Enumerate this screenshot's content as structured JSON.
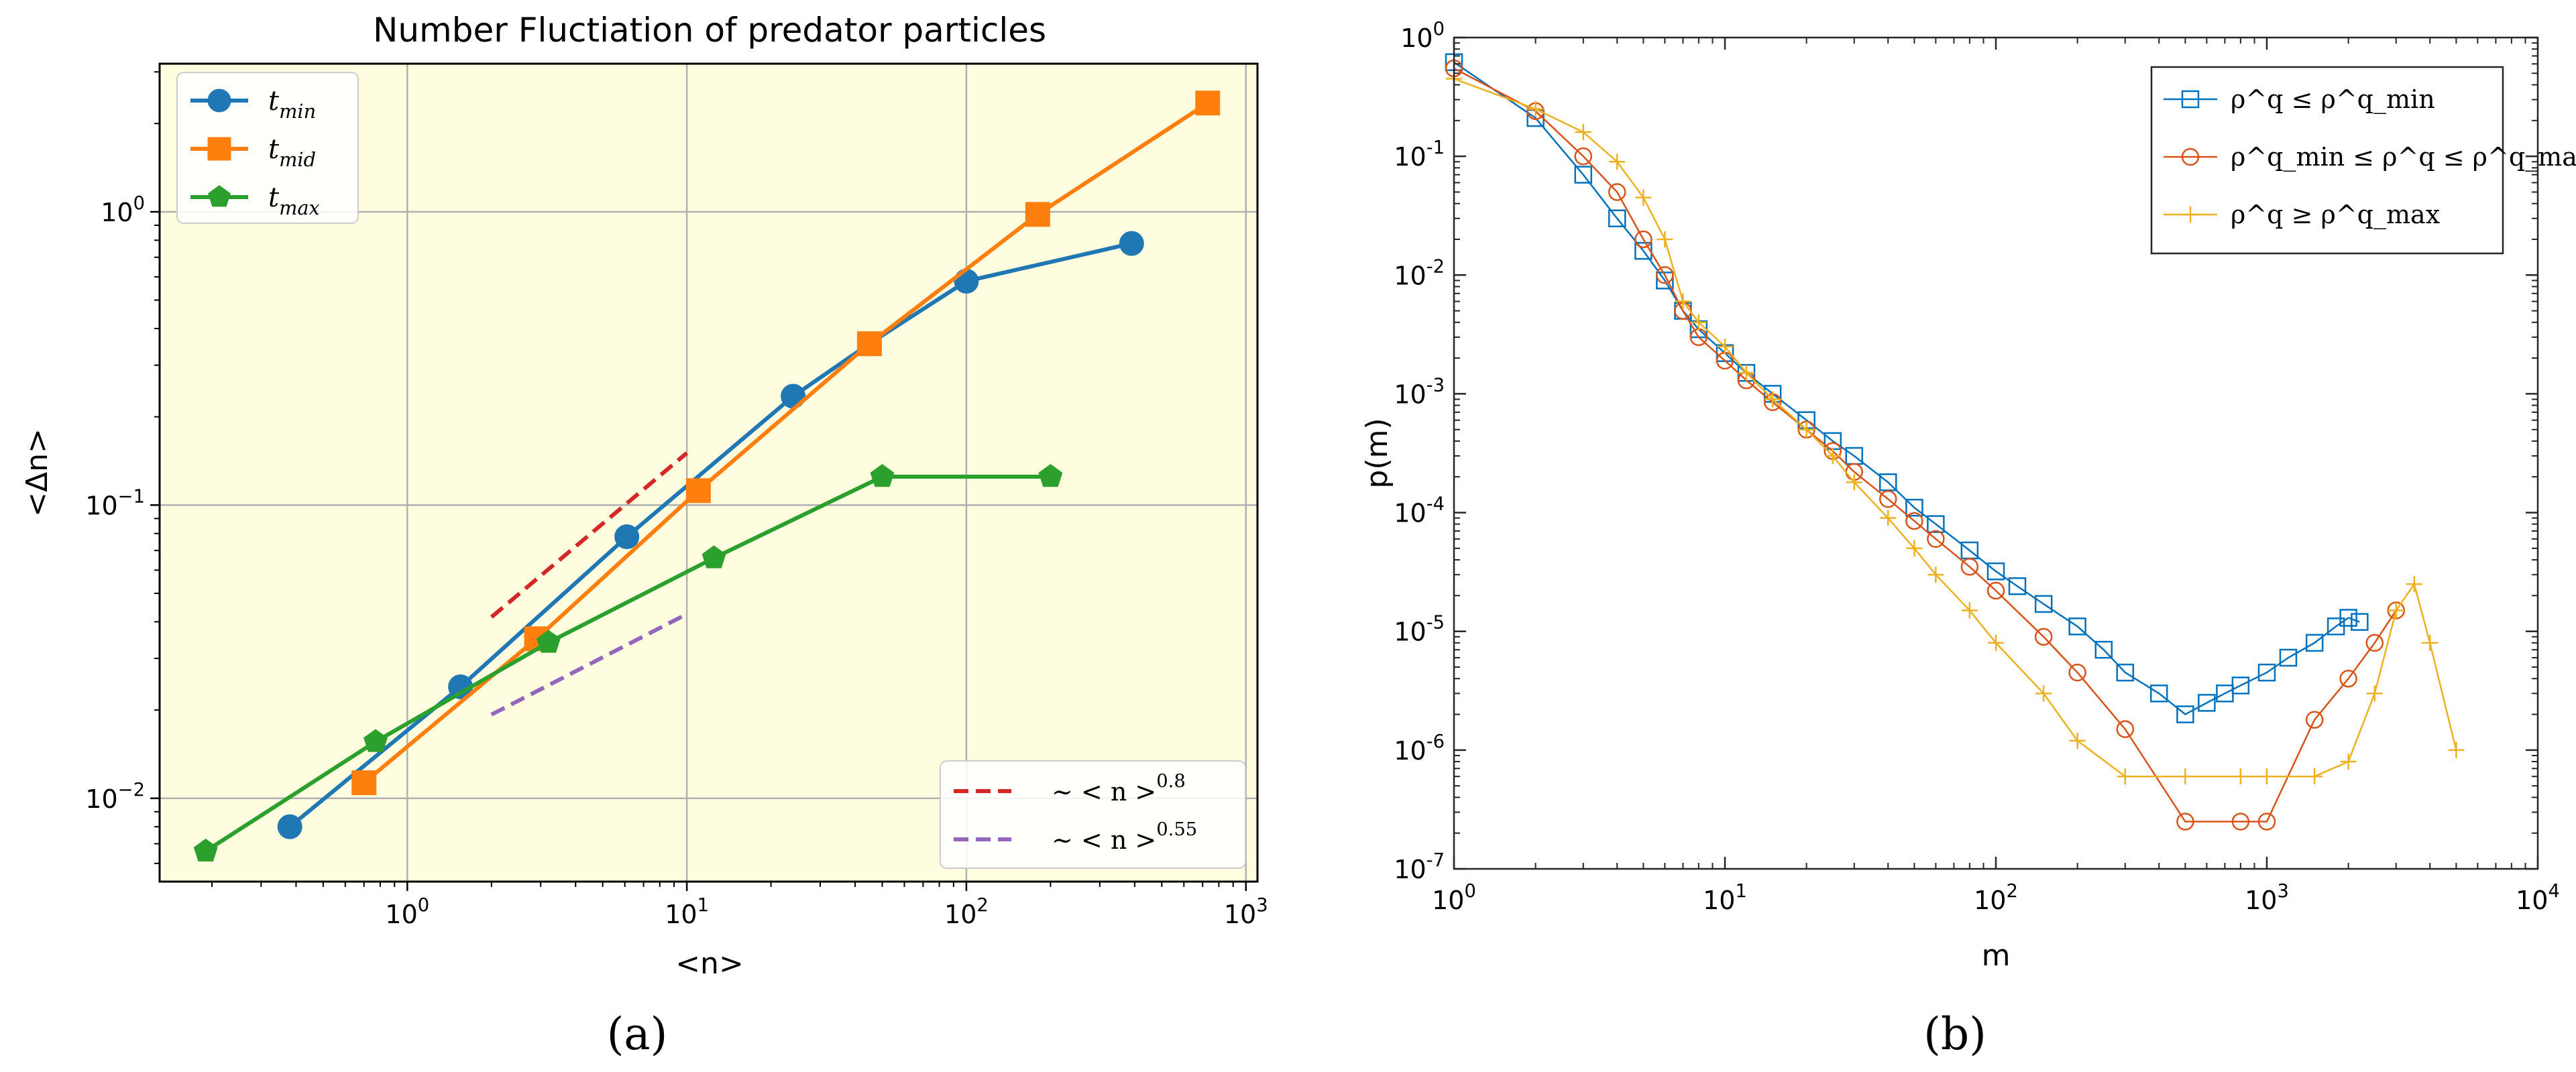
{
  "chart_data": [
    {
      "panel_label": "(a)",
      "type": "line",
      "title": "Number Fluctiation  of predator particles",
      "xlabel": "<n>",
      "ylabel": "<Δn>",
      "xscale": "log",
      "yscale": "log",
      "xlim": [
        0.13,
        1100
      ],
      "ylim": [
        0.0052,
        3.2
      ],
      "x_ticks": [
        {
          "v": 1,
          "base": "10",
          "exp": "0"
        },
        {
          "v": 10,
          "base": "10",
          "exp": "1"
        },
        {
          "v": 100,
          "base": "10",
          "exp": "2"
        },
        {
          "v": 1000,
          "base": "10",
          "exp": "3"
        }
      ],
      "y_ticks": [
        {
          "v": 0.01,
          "base": "10",
          "exp": "−2"
        },
        {
          "v": 0.1,
          "base": "10",
          "exp": "−1"
        },
        {
          "v": 1,
          "base": "10",
          "exp": "0"
        }
      ],
      "grid": true,
      "background": "#fffde0",
      "legend_position": "top-left",
      "series": [
        {
          "name_base": "t",
          "name_sub": "min",
          "color": "#1f77b4",
          "marker": "circle",
          "x": [
            0.38,
            1.55,
            6.1,
            24,
            45,
            100,
            390
          ],
          "y": [
            0.008,
            0.024,
            0.078,
            0.235,
            0.355,
            0.58,
            0.78
          ]
        },
        {
          "name_base": "t",
          "name_sub": "mid",
          "color": "#ff7f0e",
          "marker": "square",
          "x": [
            0.7,
            2.9,
            11,
            45,
            180,
            730
          ],
          "y": [
            0.0113,
            0.035,
            0.112,
            0.355,
            0.98,
            2.35
          ]
        },
        {
          "name_base": "t",
          "name_sub": "max",
          "color": "#2ca02c",
          "marker": "pentagon",
          "x": [
            0.19,
            0.77,
            3.2,
            12.5,
            50,
            200
          ],
          "y": [
            0.0066,
            0.0156,
            0.034,
            0.066,
            0.125,
            0.125
          ]
        }
      ],
      "reference_lines": [
        {
          "label_prefix": "~ < n >",
          "exponent": "0.8",
          "color": "#d62728",
          "dash": true,
          "x": [
            2,
            10
          ],
          "y": [
            0.0415,
            0.1505
          ]
        },
        {
          "label_prefix": "~ < n >",
          "exponent": "0.55",
          "color": "#9467bd",
          "dash": true,
          "x": [
            2,
            10
          ],
          "y": [
            0.0193,
            0.0425
          ]
        }
      ]
    },
    {
      "panel_label": "(b)",
      "type": "scatter",
      "xlabel": "m",
      "ylabel": "p(m)",
      "xscale": "log",
      "yscale": "log",
      "xlim": [
        1,
        10000
      ],
      "ylim": [
        1e-07,
        1
      ],
      "x_ticks": [
        {
          "v": 1,
          "base": "10",
          "exp": "0"
        },
        {
          "v": 10,
          "base": "10",
          "exp": "1"
        },
        {
          "v": 100,
          "base": "10",
          "exp": "2"
        },
        {
          "v": 1000,
          "base": "10",
          "exp": "3"
        },
        {
          "v": 10000,
          "base": "10",
          "exp": "4"
        }
      ],
      "y_ticks": [
        {
          "v": 1e-07,
          "base": "10",
          "exp": "-7"
        },
        {
          "v": 1e-06,
          "base": "10",
          "exp": "-6"
        },
        {
          "v": 1e-05,
          "base": "10",
          "exp": "-5"
        },
        {
          "v": 0.0001,
          "base": "10",
          "exp": "-4"
        },
        {
          "v": 0.001,
          "base": "10",
          "exp": "-3"
        },
        {
          "v": 0.01,
          "base": "10",
          "exp": "-2"
        },
        {
          "v": 0.1,
          "base": "10",
          "exp": "-1"
        },
        {
          "v": 1,
          "base": "10",
          "exp": "0"
        }
      ],
      "grid": false,
      "legend_position": "top-right",
      "legend": [
        {
          "color": "#0072bd",
          "marker": "square",
          "text": "ρ^q ≤ ρ^q_min"
        },
        {
          "color": "#d95319",
          "marker": "circle",
          "text": "ρ^q_min ≤  ρ^q ≤ ρ^q_max"
        },
        {
          "color": "#edb120",
          "marker": "plus",
          "text": "ρ^q ≥ ρ^q_max"
        }
      ],
      "series": [
        {
          "color": "#0072bd",
          "marker": "square",
          "x": [
            1,
            2,
            3,
            4,
            5,
            6,
            7,
            8,
            10,
            12,
            15,
            20,
            25,
            30,
            40,
            50,
            60,
            80,
            100,
            120,
            150,
            200,
            250,
            300,
            400,
            500,
            600,
            700,
            800,
            1000,
            1200,
            1500,
            1800,
            2000,
            2200
          ],
          "y": [
            0.62,
            0.21,
            0.07,
            0.03,
            0.016,
            0.009,
            0.005,
            0.0035,
            0.0022,
            0.0015,
            0.001,
            0.0006,
            0.0004,
            0.0003,
            0.00018,
            0.00011,
            8e-05,
            4.8e-05,
            3.2e-05,
            2.4e-05,
            1.7e-05,
            1.1e-05,
            7e-06,
            4.5e-06,
            3e-06,
            2e-06,
            2.5e-06,
            3e-06,
            3.5e-06,
            4.5e-06,
            6e-06,
            8e-06,
            1.1e-05,
            1.3e-05,
            1.2e-05
          ]
        },
        {
          "color": "#d95319",
          "marker": "circle",
          "x": [
            1,
            2,
            3,
            4,
            5,
            6,
            7,
            8,
            10,
            12,
            15,
            20,
            25,
            30,
            40,
            50,
            60,
            80,
            100,
            150,
            200,
            300,
            500,
            800,
            1000,
            1500,
            2000,
            2500,
            3000
          ],
          "y": [
            0.55,
            0.24,
            0.1,
            0.05,
            0.02,
            0.01,
            0.005,
            0.003,
            0.0019,
            0.0013,
            0.00085,
            0.0005,
            0.00033,
            0.00022,
            0.00013,
            8.5e-05,
            6e-05,
            3.5e-05,
            2.2e-05,
            9e-06,
            4.5e-06,
            1.5e-06,
            2.5e-07,
            2.5e-07,
            2.5e-07,
            1.8e-06,
            4e-06,
            8e-06,
            1.5e-05
          ]
        },
        {
          "color": "#edb120",
          "marker": "plus",
          "x": [
            1,
            2,
            3,
            4,
            5,
            6,
            7,
            8,
            10,
            12,
            15,
            20,
            25,
            30,
            40,
            50,
            60,
            80,
            100,
            150,
            200,
            300,
            500,
            800,
            1000,
            1500,
            2000,
            2500,
            3000,
            3500,
            4000,
            5000
          ],
          "y": [
            0.45,
            0.25,
            0.16,
            0.09,
            0.045,
            0.02,
            0.006,
            0.004,
            0.0025,
            0.0015,
            0.0009,
            0.0005,
            0.0003,
            0.00018,
            9e-05,
            5e-05,
            3e-05,
            1.5e-05,
            8e-06,
            3e-06,
            1.2e-06,
            6e-07,
            6e-07,
            6e-07,
            6e-07,
            6e-07,
            8e-07,
            3e-06,
            1.5e-05,
            2.5e-05,
            8e-06,
            1e-06
          ]
        }
      ]
    }
  ]
}
